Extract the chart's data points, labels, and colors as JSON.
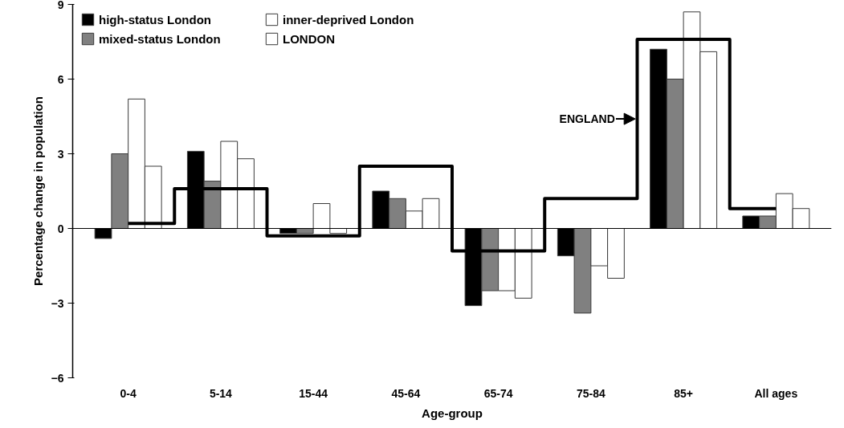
{
  "chart_data": {
    "type": "bar",
    "xlabel": "Age-group",
    "ylabel": "Percentage change in population",
    "categories": [
      "0-4",
      "5-14",
      "15-44",
      "45-64",
      "65-74",
      "75-84",
      "85+",
      "All ages"
    ],
    "series": [
      {
        "name": "high-status London",
        "color": "#000000",
        "values": [
          -0.4,
          3.1,
          -0.2,
          1.5,
          -3.1,
          -1.1,
          7.2,
          0.5
        ]
      },
      {
        "name": "mixed-status London",
        "color": "#808080",
        "values": [
          3.0,
          1.9,
          -0.2,
          1.2,
          -2.5,
          -3.4,
          6.0,
          0.5
        ]
      },
      {
        "name": "inner-deprived London",
        "color": "#ffffff",
        "values": [
          5.2,
          3.5,
          1.0,
          0.7,
          -2.5,
          -1.5,
          8.7,
          1.4
        ]
      },
      {
        "name": "LONDON",
        "color": "#ffffff",
        "values": [
          2.5,
          2.8,
          -0.2,
          1.2,
          -2.8,
          -2.0,
          7.1,
          0.8
        ]
      },
      {
        "name": "ENGLAND",
        "type": "step",
        "color": "#000000",
        "values": [
          0.2,
          1.6,
          -0.3,
          2.5,
          -0.9,
          1.2,
          7.6,
          0.8
        ]
      }
    ],
    "ylim": [
      -6,
      9
    ],
    "yticks": [
      -6,
      -3,
      0,
      3,
      6,
      9
    ],
    "grid": false,
    "legend": "top left",
    "ref_lines": [
      {
        "axis": "y",
        "value": 0,
        "color": "#000000"
      }
    ]
  }
}
